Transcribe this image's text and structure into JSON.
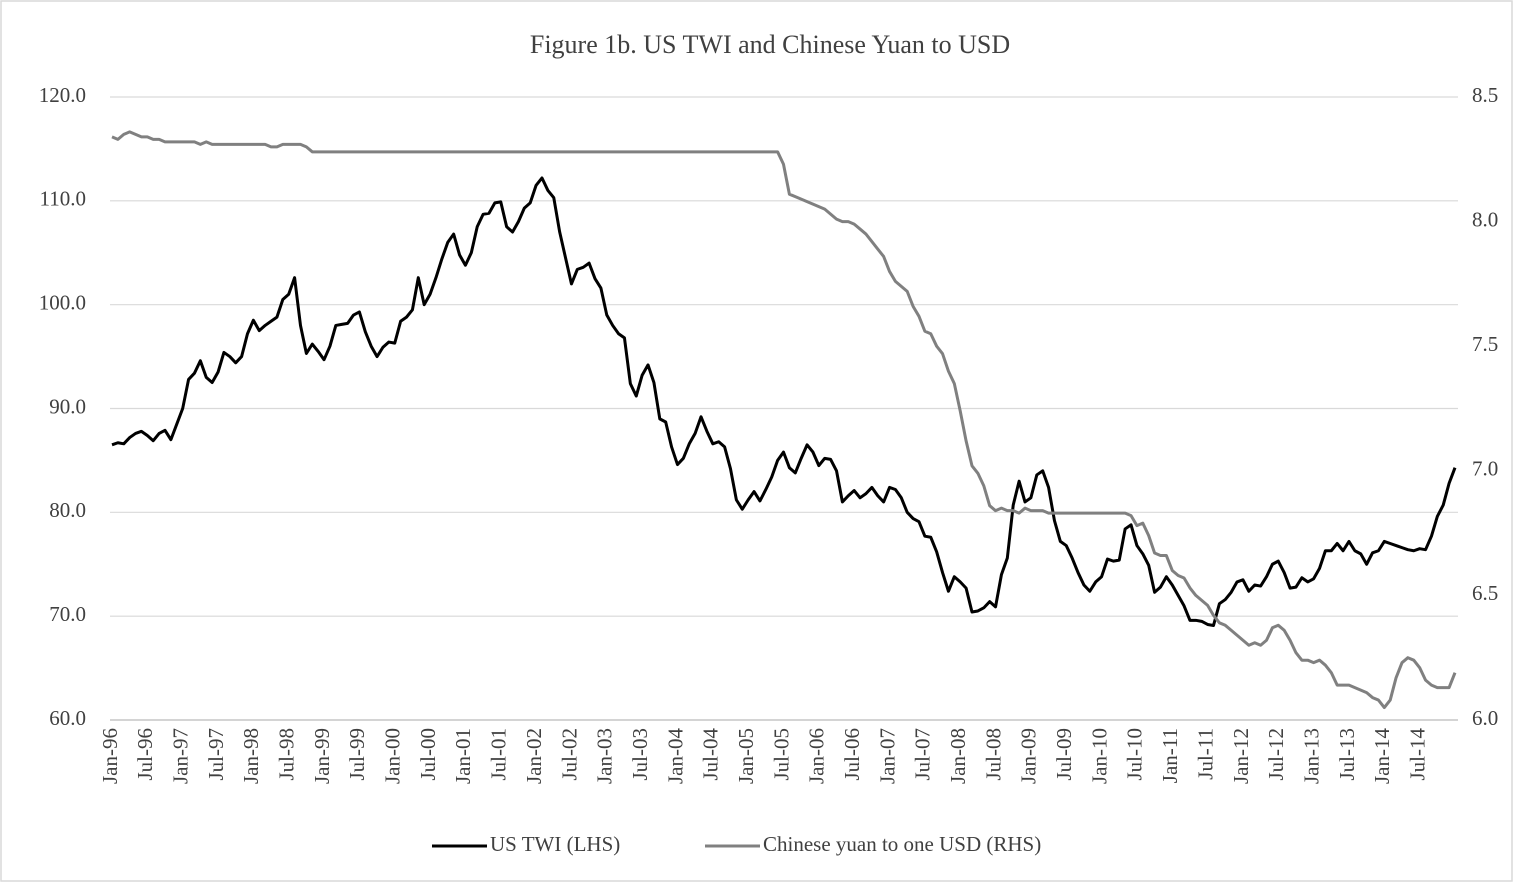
{
  "chart_data": {
    "type": "line",
    "title": "Figure 1b. US TWI and Chinese Yuan to USD",
    "categories": [
      "Jan-96",
      null,
      null,
      null,
      null,
      null,
      "Jul-96",
      null,
      null,
      null,
      null,
      null,
      "Jan-97",
      null,
      null,
      null,
      null,
      null,
      "Jul-97",
      null,
      null,
      null,
      null,
      null,
      "Jan-98",
      null,
      null,
      null,
      null,
      null,
      "Jul-98",
      null,
      null,
      null,
      null,
      null,
      "Jan-99",
      null,
      null,
      null,
      null,
      null,
      "Jul-99",
      null,
      null,
      null,
      null,
      null,
      "Jan-00",
      null,
      null,
      null,
      null,
      null,
      "Jul-00",
      null,
      null,
      null,
      null,
      null,
      "Jan-01",
      null,
      null,
      null,
      null,
      null,
      "Jul-01",
      null,
      null,
      null,
      null,
      null,
      "Jan-02",
      null,
      null,
      null,
      null,
      null,
      "Jul-02",
      null,
      null,
      null,
      null,
      null,
      "Jan-03",
      null,
      null,
      null,
      null,
      null,
      "Jul-03",
      null,
      null,
      null,
      null,
      null,
      "Jan-04",
      null,
      null,
      null,
      null,
      null,
      "Jul-04",
      null,
      null,
      null,
      null,
      null,
      "Jan-05",
      null,
      null,
      null,
      null,
      null,
      "Jul-05",
      null,
      null,
      null,
      null,
      null,
      "Jan-06",
      null,
      null,
      null,
      null,
      null,
      "Jul-06",
      null,
      null,
      null,
      null,
      null,
      "Jan-07",
      null,
      null,
      null,
      null,
      null,
      "Jul-07",
      null,
      null,
      null,
      null,
      null,
      "Jan-08",
      null,
      null,
      null,
      null,
      null,
      "Jul-08",
      null,
      null,
      null,
      null,
      null,
      "Jan-09",
      null,
      null,
      null,
      null,
      null,
      "Jul-09",
      null,
      null,
      null,
      null,
      null,
      "Jan-10",
      null,
      null,
      null,
      null,
      null,
      "Jul-10",
      null,
      null,
      null,
      null,
      null,
      "Jan-11",
      null,
      null,
      null,
      null,
      null,
      "Jul-11",
      null,
      null,
      null,
      null,
      null,
      "Jan-12",
      null,
      null,
      null,
      null,
      null,
      "Jul-12",
      null,
      null,
      null,
      null,
      null,
      "Jan-13",
      null,
      null,
      null,
      null,
      null,
      "Jul-13",
      null,
      null,
      null,
      null,
      null,
      "Jan-14",
      null,
      null,
      null,
      null,
      null,
      "Jul-14",
      null,
      null,
      null,
      null,
      null,
      null
    ],
    "series": [
      {
        "name": "US TWI (LHS)",
        "color": "#000000",
        "axis": "y",
        "values": [
          86.5,
          86.7,
          86.6,
          87.2,
          87.6,
          87.8,
          87.4,
          86.9,
          87.6,
          87.9,
          87.0,
          88.5,
          90.0,
          92.8,
          93.4,
          94.6,
          93.0,
          92.5,
          93.5,
          95.4,
          95.0,
          94.4,
          95.0,
          97.2,
          98.5,
          97.5,
          98.0,
          98.4,
          98.8,
          100.5,
          101.0,
          102.6,
          98.0,
          95.3,
          96.2,
          95.5,
          94.7,
          96.0,
          98.0,
          98.1,
          98.2,
          99.0,
          99.3,
          97.4,
          96.0,
          95.0,
          95.9,
          96.4,
          96.3,
          98.4,
          98.8,
          99.5,
          102.6,
          100.0,
          101.0,
          102.6,
          104.4,
          106.0,
          106.8,
          104.8,
          103.8,
          105.0,
          107.5,
          108.7,
          108.8,
          109.8,
          109.9,
          107.5,
          107.0,
          108.0,
          109.3,
          109.8,
          111.5,
          112.2,
          111.0,
          110.3,
          107.0,
          104.5,
          102.0,
          103.4,
          103.6,
          104.0,
          102.5,
          101.6,
          99.0,
          98.0,
          97.2,
          96.8,
          92.4,
          91.2,
          93.2,
          94.2,
          92.5,
          89.0,
          88.7,
          86.3,
          84.6,
          85.2,
          86.6,
          87.6,
          89.2,
          87.8,
          86.6,
          86.8,
          86.3,
          84.2,
          81.2,
          80.3,
          81.2,
          82.0,
          81.1,
          82.2,
          83.4,
          85.0,
          85.8,
          84.3,
          83.8,
          85.2,
          86.5,
          85.8,
          84.5,
          85.2,
          85.1,
          84.0,
          81.0,
          81.6,
          82.1,
          81.4,
          81.8,
          82.4,
          81.6,
          81.0,
          82.4,
          82.2,
          81.4,
          80.0,
          79.4,
          79.1,
          77.7,
          77.6,
          76.2,
          74.2,
          72.4,
          73.8,
          73.3,
          72.7,
          70.4,
          70.5,
          70.8,
          71.4,
          70.9,
          74.0,
          75.6,
          80.7,
          83.0,
          81.0,
          81.4,
          83.6,
          84.0,
          82.4,
          79.2,
          77.2,
          76.8,
          75.6,
          74.2,
          73.0,
          72.4,
          73.3,
          73.8,
          75.5,
          75.3,
          75.4,
          78.4,
          78.8,
          76.8,
          76.0,
          74.9,
          72.3,
          72.8,
          73.8,
          73.0,
          72.0,
          71.0,
          69.6,
          69.6,
          69.5,
          69.2,
          69.1,
          71.2,
          71.6,
          72.3,
          73.3,
          73.5,
          72.4,
          73.0,
          72.9,
          73.8,
          75.0,
          75.3,
          74.2,
          72.7,
          72.8,
          73.7,
          73.3,
          73.6,
          74.6,
          76.3,
          76.3,
          77.0,
          76.3,
          77.2,
          76.3,
          76.0,
          75.0,
          76.1,
          76.3,
          77.2,
          77.0,
          76.8,
          76.6,
          76.4,
          76.3,
          76.5,
          76.4,
          77.7,
          79.6,
          80.7,
          82.8,
          84.3
        ]
      },
      {
        "name": "Chinese yuan to one USD (RHS)",
        "color": "#808080",
        "axis": "y2",
        "values": [
          8.34,
          8.33,
          8.35,
          8.36,
          8.35,
          8.34,
          8.34,
          8.33,
          8.33,
          8.32,
          8.32,
          8.32,
          8.32,
          8.32,
          8.32,
          8.31,
          8.32,
          8.31,
          8.31,
          8.31,
          8.31,
          8.31,
          8.31,
          8.31,
          8.31,
          8.31,
          8.31,
          8.3,
          8.3,
          8.31,
          8.31,
          8.31,
          8.31,
          8.3,
          8.28,
          8.28,
          8.28,
          8.28,
          8.28,
          8.28,
          8.28,
          8.28,
          8.28,
          8.28,
          8.28,
          8.28,
          8.28,
          8.28,
          8.28,
          8.28,
          8.28,
          8.28,
          8.28,
          8.28,
          8.28,
          8.28,
          8.28,
          8.28,
          8.28,
          8.28,
          8.28,
          8.28,
          8.28,
          8.28,
          8.28,
          8.28,
          8.28,
          8.28,
          8.28,
          8.28,
          8.28,
          8.28,
          8.28,
          8.28,
          8.28,
          8.28,
          8.28,
          8.28,
          8.28,
          8.28,
          8.28,
          8.28,
          8.28,
          8.28,
          8.28,
          8.28,
          8.28,
          8.28,
          8.28,
          8.28,
          8.28,
          8.28,
          8.28,
          8.28,
          8.28,
          8.28,
          8.28,
          8.28,
          8.28,
          8.28,
          8.28,
          8.28,
          8.28,
          8.28,
          8.28,
          8.28,
          8.28,
          8.28,
          8.28,
          8.28,
          8.28,
          8.28,
          8.28,
          8.28,
          8.23,
          8.11,
          8.1,
          8.09,
          8.08,
          8.07,
          8.06,
          8.05,
          8.03,
          8.01,
          8.0,
          8.0,
          7.99,
          7.97,
          7.95,
          7.92,
          7.89,
          7.86,
          7.8,
          7.76,
          7.74,
          7.72,
          7.66,
          7.62,
          7.56,
          7.55,
          7.5,
          7.47,
          7.4,
          7.35,
          7.24,
          7.12,
          7.02,
          6.99,
          6.94,
          6.86,
          6.84,
          6.85,
          6.84,
          6.84,
          6.83,
          6.85,
          6.84,
          6.84,
          6.84,
          6.83,
          6.83,
          6.83,
          6.83,
          6.83,
          6.83,
          6.83,
          6.83,
          6.83,
          6.83,
          6.83,
          6.83,
          6.83,
          6.83,
          6.82,
          6.78,
          6.79,
          6.74,
          6.67,
          6.66,
          6.66,
          6.6,
          6.58,
          6.57,
          6.53,
          6.5,
          6.48,
          6.46,
          6.42,
          6.39,
          6.38,
          6.36,
          6.34,
          6.32,
          6.3,
          6.31,
          6.3,
          6.32,
          6.37,
          6.38,
          6.36,
          6.32,
          6.27,
          6.24,
          6.24,
          6.23,
          6.24,
          6.22,
          6.19,
          6.14,
          6.14,
          6.14,
          6.13,
          6.12,
          6.11,
          6.09,
          6.08,
          6.05,
          6.08,
          6.17,
          6.23,
          6.25,
          6.24,
          6.21,
          6.16,
          6.14,
          6.13,
          6.13,
          6.13,
          6.19
        ]
      }
    ],
    "ylim": [
      60,
      120
    ],
    "yticks": [
      {
        "value": 60,
        "label": "60.0"
      },
      {
        "value": 70,
        "label": "70.0"
      },
      {
        "value": 80,
        "label": "80.0"
      },
      {
        "value": 90,
        "label": "90.0"
      },
      {
        "value": 100,
        "label": "100.0"
      },
      {
        "value": 110,
        "label": "110.0"
      },
      {
        "value": 120,
        "label": "120.0"
      }
    ],
    "y2lim": [
      6,
      8.5
    ],
    "y2ticks": [
      {
        "value": 6,
        "label": "6.0"
      },
      6.5,
      {
        "value": 7,
        "label": "7.0"
      },
      7.5,
      {
        "value": 8,
        "label": "8.0"
      },
      8.5
    ],
    "grid": true,
    "legend": "bottom"
  }
}
